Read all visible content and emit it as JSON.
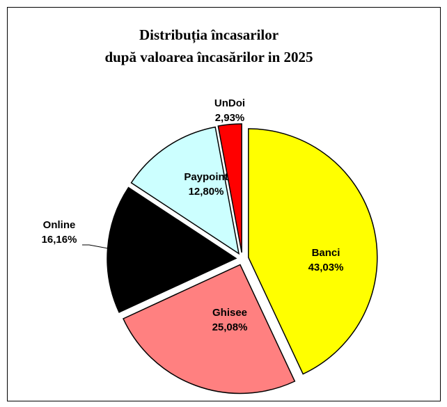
{
  "chart_data": {
    "type": "pie",
    "title": [
      "Distribuția încasarilor",
      "după valoarea încasărilor in 2025"
    ],
    "categories": [
      "Banci",
      "Ghisee",
      "Online",
      "Paypoint",
      "UnDoi"
    ],
    "values": [
      43.03,
      25.08,
      16.16,
      12.8,
      2.93
    ],
    "value_labels": [
      "43,03%",
      "25,08%",
      "16,16%",
      "12,80%",
      "2,93%"
    ],
    "colors": [
      "#ffff00",
      "#ff8080",
      "#000000",
      "#ccffff",
      "#ff0000"
    ]
  }
}
